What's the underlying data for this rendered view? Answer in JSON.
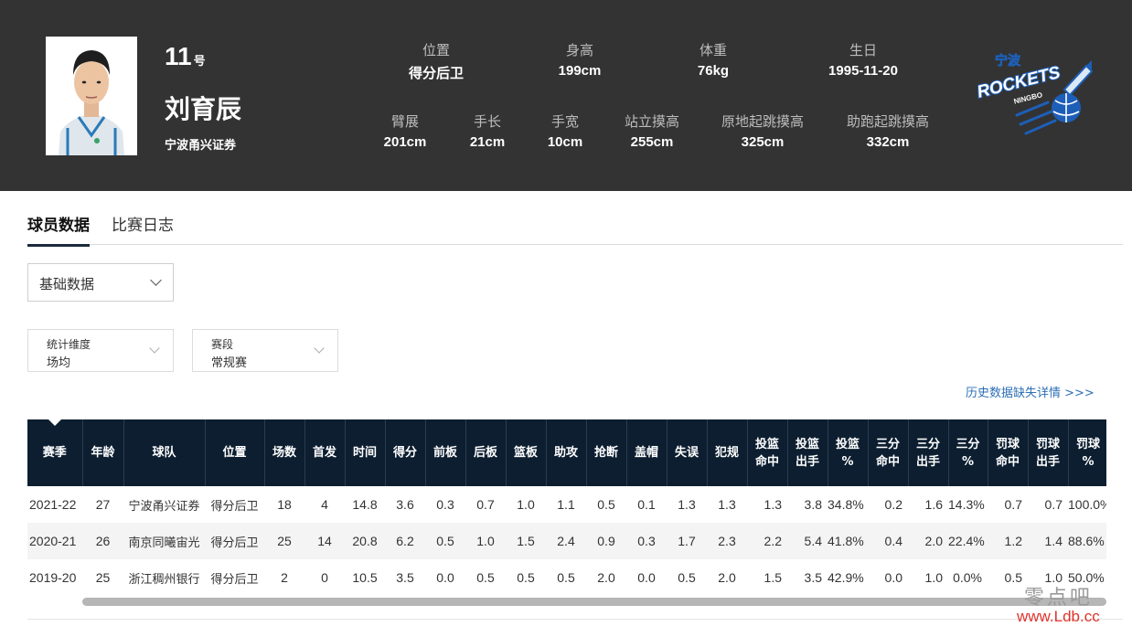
{
  "player": {
    "number": "11",
    "number_suffix": "号",
    "name": "刘育辰",
    "team": "宁波甬兴证券"
  },
  "stats_row1": [
    {
      "label": "位置",
      "value": "得分后卫"
    },
    {
      "label": "身高",
      "value": "199cm"
    },
    {
      "label": "体重",
      "value": "76kg"
    },
    {
      "label": "生日",
      "value": "1995-11-20"
    }
  ],
  "stats_row2": [
    {
      "label": "臂展",
      "value": "201cm"
    },
    {
      "label": "手长",
      "value": "21cm"
    },
    {
      "label": "手宽",
      "value": "10cm"
    },
    {
      "label": "站立摸高",
      "value": "255cm"
    },
    {
      "label": "原地起跳摸高",
      "value": "325cm"
    },
    {
      "label": "助跑起跳摸高",
      "value": "332cm"
    }
  ],
  "team_logo": {
    "line1": "宁波",
    "line2": "ROCKETS",
    "line3": "NINGBO"
  },
  "tabs": [
    "球员数据",
    "比赛日志"
  ],
  "data_type_select": "基础数据",
  "filters": [
    {
      "caption": "统计维度",
      "value": "场均"
    },
    {
      "caption": "赛段",
      "value": "常规赛"
    }
  ],
  "history_link": "历史数据缺失详情 >>>",
  "table": {
    "headers": [
      [
        "赛季"
      ],
      [
        "年龄"
      ],
      [
        "球队"
      ],
      [
        "位置"
      ],
      [
        "场数"
      ],
      [
        "首发"
      ],
      [
        "时间"
      ],
      [
        "得分"
      ],
      [
        "前板"
      ],
      [
        "后板"
      ],
      [
        "篮板"
      ],
      [
        "助攻"
      ],
      [
        "抢断"
      ],
      [
        "盖帽"
      ],
      [
        "失误"
      ],
      [
        "犯规"
      ],
      [
        "投篮",
        "命中"
      ],
      [
        "投篮",
        "出手"
      ],
      [
        "投篮",
        "%"
      ],
      [
        "三分",
        "命中"
      ],
      [
        "三分",
        "出手"
      ],
      [
        "三分",
        "%"
      ],
      [
        "罚球",
        "命中"
      ],
      [
        "罚球",
        "出手"
      ],
      [
        "罚球",
        "%"
      ]
    ],
    "rows": [
      [
        "2021-22",
        "27",
        "宁波甬兴证券",
        "得分后卫",
        "18",
        "4",
        "14.8",
        "3.6",
        "0.3",
        "0.7",
        "1.0",
        "1.1",
        "0.5",
        "0.1",
        "1.3",
        "1.3",
        "1.3",
        "3.8",
        "34.8%",
        "0.2",
        "1.6",
        "14.3%",
        "0.7",
        "0.7",
        "100.0%"
      ],
      [
        "2020-21",
        "26",
        "南京同曦宙光",
        "得分后卫",
        "25",
        "14",
        "20.8",
        "6.2",
        "0.5",
        "1.0",
        "1.5",
        "2.4",
        "0.9",
        "0.3",
        "1.7",
        "2.3",
        "2.2",
        "5.4",
        "41.8%",
        "0.4",
        "2.0",
        "22.4%",
        "1.2",
        "1.4",
        "88.6%"
      ],
      [
        "2019-20",
        "25",
        "浙江稠州银行",
        "得分后卫",
        "2",
        "0",
        "10.5",
        "3.5",
        "0.0",
        "0.5",
        "0.5",
        "0.5",
        "2.0",
        "0.0",
        "0.5",
        "2.0",
        "1.5",
        "3.5",
        "42.9%",
        "0.0",
        "1.0",
        "0.0%",
        "0.5",
        "1.0",
        "50.0%"
      ]
    ]
  },
  "watermark": {
    "line1": "零点吧",
    "line2": "www.Ldb.cc"
  },
  "colors": {
    "header_bg": "#333333",
    "table_header_bg": "#0c1e30",
    "link": "#2d6fb5",
    "logo_blue": "#1d5fb8"
  }
}
